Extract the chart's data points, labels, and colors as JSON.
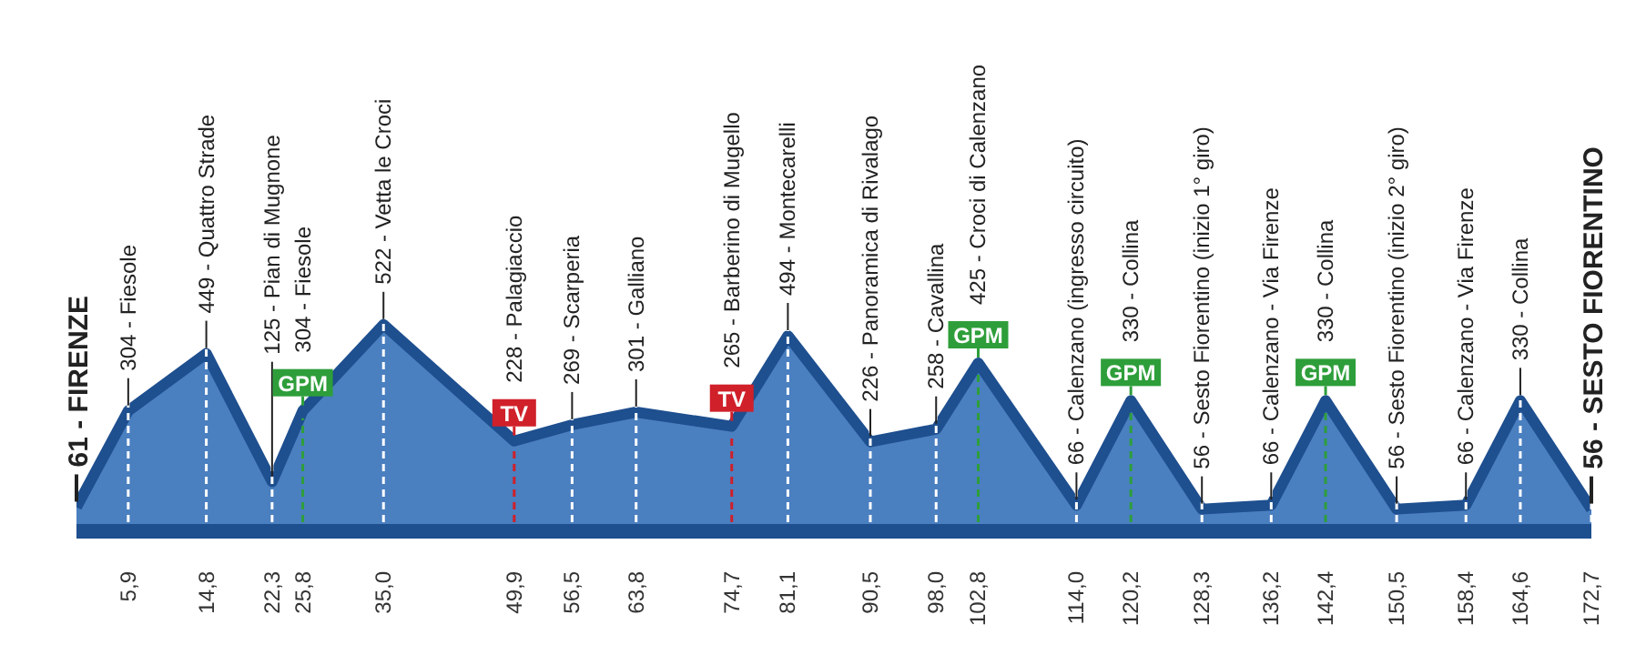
{
  "chart_data": {
    "type": "area",
    "color": "#4a7fc0",
    "x": [
      0,
      5.9,
      14.8,
      22.3,
      25.8,
      35.0,
      49.9,
      56.5,
      63.8,
      74.7,
      81.1,
      90.5,
      98.0,
      102.8,
      114.0,
      120.2,
      128.3,
      136.2,
      142.4,
      150.5,
      158.4,
      164.6,
      172.7
    ],
    "values": [
      61,
      304,
      449,
      125,
      304,
      522,
      228,
      269,
      301,
      265,
      494,
      226,
      258,
      425,
      66,
      330,
      56,
      66,
      330,
      56,
      66,
      330,
      56
    ],
    "value_labels": [
      "61 - FIRENZE",
      "304 - Fiesole",
      "449 - Quattro Strade",
      "125 - Pian di Mugnone",
      "304 - Fiesole",
      "522 - Vetta le Croci",
      "228 - Palagiaccio",
      "269 - Scarperia",
      "301 - Galliano",
      "265 - Barberino di Mugello",
      "494 - Montecarelli",
      "226 - Panoramica di Rivalago",
      "258 - Cavallina",
      "425 - Croci di Calenzano",
      "66 - Calenzano (ingresso circuito)",
      "330 - Collina",
      "56 - Sesto Fiorentino (inizio 1° giro)",
      "66 - Calenzano - Via Firenze",
      "330 - Collina",
      "56 - Sesto Fiorentino (inizio 2° giro)",
      "66 - Calenzano - Via Firenze",
      "330 - Collina",
      "56 - SESTO FIORENTINO"
    ],
    "xlim": [
      0,
      172.7
    ],
    "xticks": [
      {
        "value": 5.9,
        "label": "5,9"
      },
      {
        "value": 14.8,
        "label": "14,8"
      },
      {
        "value": 22.3,
        "label": "22,3"
      },
      {
        "value": 25.8,
        "label": "25,8"
      },
      {
        "value": 35.0,
        "label": "35,0"
      },
      {
        "value": 49.9,
        "label": "49,9"
      },
      {
        "value": 56.5,
        "label": "56,5"
      },
      {
        "value": 63.8,
        "label": "63,8"
      },
      {
        "value": 74.7,
        "label": "74,7"
      },
      {
        "value": 81.1,
        "label": "81,1"
      },
      {
        "value": 90.5,
        "label": "90,5"
      },
      {
        "value": 98.0,
        "label": "98,0"
      },
      {
        "value": 102.8,
        "label": "102,8"
      },
      {
        "value": 114.0,
        "label": "114,0"
      },
      {
        "value": 120.2,
        "label": "120,2"
      },
      {
        "value": 128.3,
        "label": "128,3"
      },
      {
        "value": 136.2,
        "label": "136,2"
      },
      {
        "value": 142.4,
        "label": "142,4"
      },
      {
        "value": 150.5,
        "label": "150,5"
      },
      {
        "value": 158.4,
        "label": "158,4"
      },
      {
        "value": 164.6,
        "label": "164,6"
      },
      {
        "value": 172.7,
        "label": "172,7"
      }
    ],
    "tick_labels": "x",
    "grid": "x",
    "ref_lines": [
      {
        "axis": "x",
        "value": 25.8,
        "label": "GPM",
        "color": "#2e9e3a"
      },
      {
        "axis": "x",
        "value": 49.9,
        "label": "TV",
        "color": "#d0202a"
      },
      {
        "axis": "x",
        "value": 74.7,
        "label": "TV",
        "color": "#d0202a"
      },
      {
        "axis": "x",
        "value": 102.8,
        "label": "GPM",
        "color": "#2e9e3a"
      },
      {
        "axis": "x",
        "value": 120.2,
        "label": "GPM",
        "color": "#2e9e3a"
      },
      {
        "axis": "x",
        "value": 142.4,
        "label": "GPM",
        "color": "#2e9e3a"
      }
    ]
  }
}
